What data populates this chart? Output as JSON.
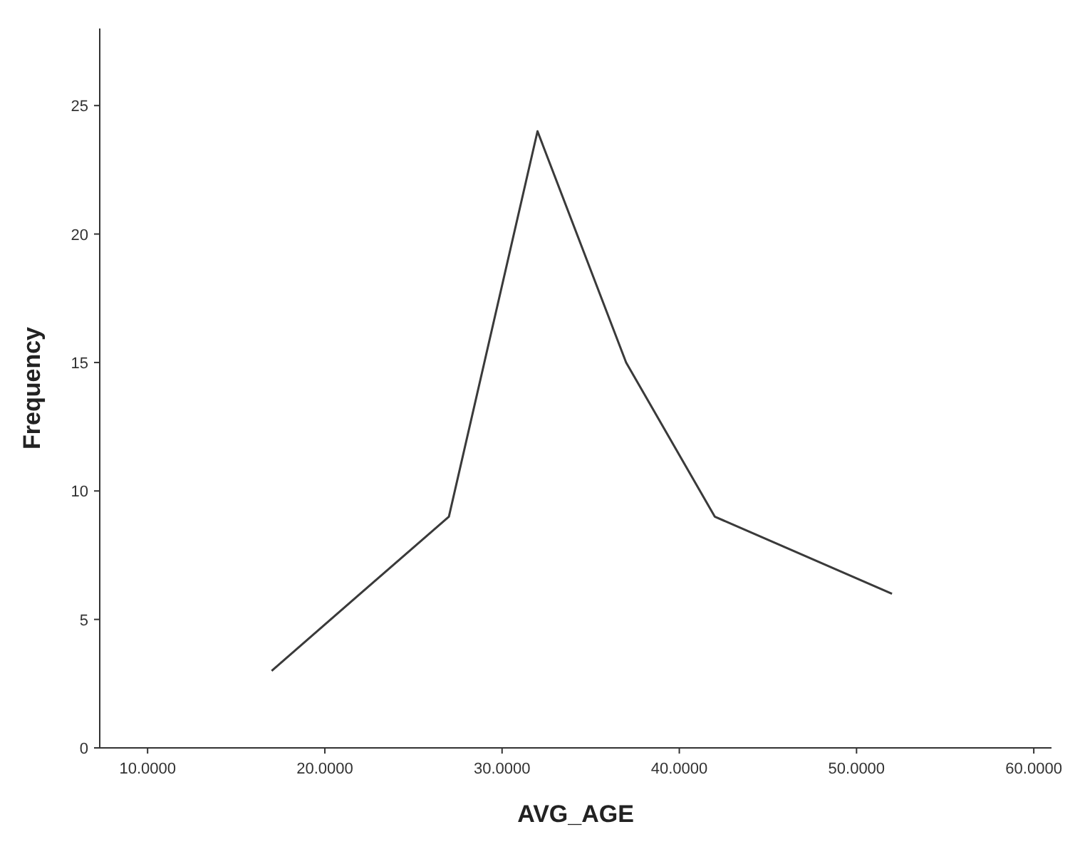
{
  "chart_data": {
    "type": "line",
    "xlabel": "AVG_AGE",
    "ylabel": "Frequency",
    "x": [
      17,
      27,
      32,
      37,
      42,
      52
    ],
    "series": [
      {
        "color": "#3a3a3a",
        "values": [
          3,
          9,
          24,
          15,
          9,
          6
        ]
      }
    ],
    "xlim": [
      7.3,
      61
    ],
    "xticks": [
      {
        "value": 10,
        "label": "10.0000"
      },
      {
        "value": 20,
        "label": "20.0000"
      },
      {
        "value": 30,
        "label": "30.0000"
      },
      {
        "value": 40,
        "label": "40.0000"
      },
      {
        "value": 50,
        "label": "50.0000"
      },
      {
        "value": 60,
        "label": "60.0000"
      }
    ],
    "ylim": [
      0,
      28
    ],
    "yticks": [
      0,
      5,
      10,
      15,
      20,
      25
    ],
    "grid": false,
    "marker": "none",
    "line_style": "solid"
  }
}
